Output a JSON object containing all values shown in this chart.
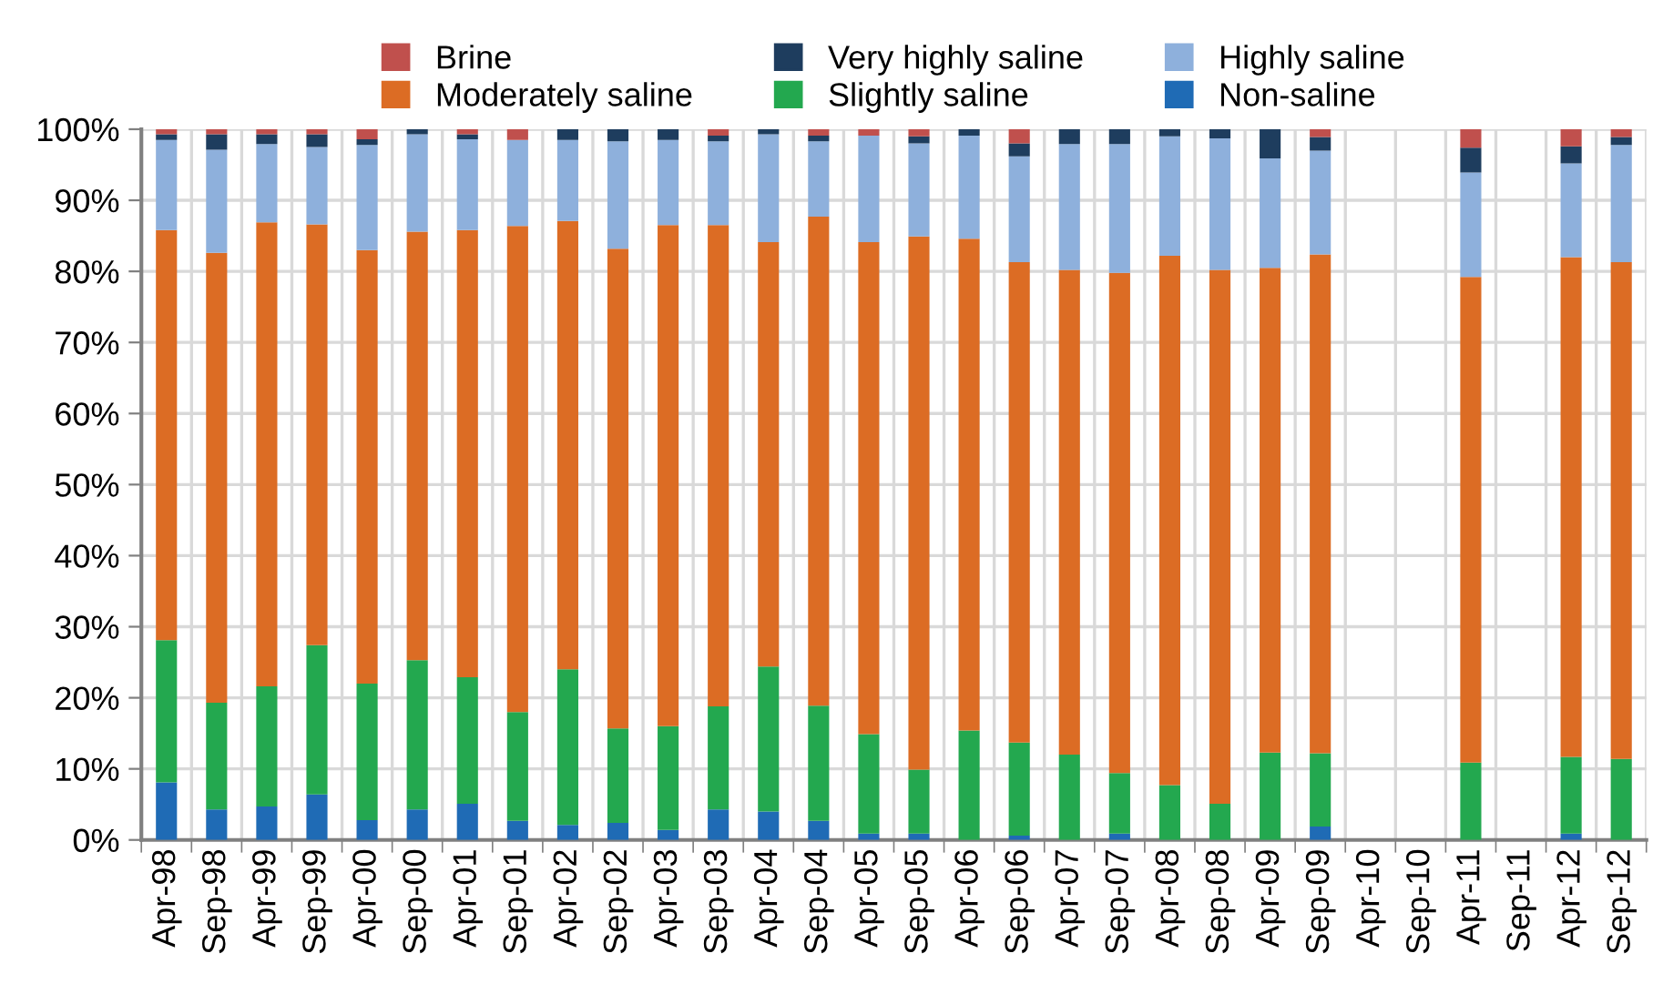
{
  "chart_data": {
    "type": "bar",
    "stacked": true,
    "categories": [
      "Apr-98",
      "Sep-98",
      "Apr-99",
      "Sep-99",
      "Apr-00",
      "Sep-00",
      "Apr-01",
      "Sep-01",
      "Apr-02",
      "Sep-02",
      "Apr-03",
      "Sep-03",
      "Apr-04",
      "Sep-04",
      "Apr-05",
      "Sep-05",
      "Apr-06",
      "Sep-06",
      "Apr-07",
      "Sep-07",
      "Apr-08",
      "Sep-08",
      "Apr-09",
      "Sep-09",
      "Apr-10",
      "Sep-10",
      "Apr-11",
      "Sep-11",
      "Apr-12",
      "Sep-12"
    ],
    "series": [
      {
        "name": "Non-saline",
        "color": "#1f6bb5",
        "values": [
          8.1,
          4.3,
          4.7,
          6.4,
          2.8,
          4.3,
          5.1,
          2.7,
          2.1,
          2.4,
          1.4,
          4.3,
          4.0,
          2.7,
          0.9,
          0.9,
          0,
          0.6,
          0,
          0.9,
          0,
          0,
          0,
          1.9,
          null,
          null,
          0,
          null,
          0.9,
          0
        ]
      },
      {
        "name": "Slightly saline",
        "color": "#23a84f",
        "values": [
          20.0,
          15.0,
          16.9,
          21.0,
          19.2,
          21.0,
          17.8,
          15.3,
          21.9,
          13.3,
          14.6,
          14.5,
          20.4,
          16.2,
          14.0,
          9.0,
          15.4,
          13.1,
          12.0,
          8.5,
          7.7,
          5.1,
          12.3,
          10.3,
          null,
          null,
          10.9,
          null,
          10.8,
          11.4
        ]
      },
      {
        "name": "Moderately saline",
        "color": "#dc6c24",
        "values": [
          57.7,
          63.3,
          65.3,
          59.2,
          61.0,
          60.3,
          62.9,
          68.4,
          63.1,
          67.5,
          70.5,
          67.7,
          59.7,
          68.8,
          69.2,
          75.0,
          69.2,
          67.6,
          68.2,
          70.4,
          74.5,
          75.1,
          68.2,
          70.2,
          null,
          null,
          68.3,
          null,
          70.3,
          69.9
        ]
      },
      {
        "name": "Highly saline",
        "color": "#8eb0dc",
        "values": [
          12.7,
          14.5,
          11.0,
          10.9,
          14.8,
          13.7,
          12.8,
          12.1,
          11.4,
          15.1,
          12.0,
          11.8,
          15.2,
          10.6,
          15.0,
          13.1,
          14.5,
          14.9,
          17.7,
          18.1,
          16.8,
          18.5,
          15.4,
          14.6,
          null,
          null,
          14.7,
          null,
          13.2,
          16.5
        ]
      },
      {
        "name": "Very highly saline",
        "color": "#1e3d5e",
        "values": [
          0.8,
          2.2,
          1.4,
          1.8,
          0.8,
          0.7,
          0.7,
          0,
          1.5,
          1.7,
          1.5,
          0.8,
          0.7,
          0.8,
          0,
          1.0,
          0.9,
          1.8,
          2.1,
          2.1,
          1.0,
          1.3,
          4.1,
          1.9,
          null,
          null,
          3.5,
          null,
          2.4,
          1.1
        ]
      },
      {
        "name": "Brine",
        "color": "#c0504d",
        "values": [
          0.7,
          0.7,
          0.7,
          0.7,
          1.4,
          0,
          0.7,
          1.5,
          0,
          0,
          0,
          0.9,
          0,
          0.9,
          0.9,
          1.0,
          0,
          2.0,
          0,
          0,
          0,
          0,
          0,
          1.1,
          null,
          null,
          2.6,
          null,
          2.4,
          1.1
        ]
      }
    ],
    "ylim": [
      0,
      100
    ],
    "yticks": [
      {
        "value": 0,
        "label": "0%"
      },
      {
        "value": 10,
        "label": "10%"
      },
      {
        "value": 20,
        "label": "20%"
      },
      {
        "value": 30,
        "label": "30%"
      },
      {
        "value": 40,
        "label": "40%"
      },
      {
        "value": 50,
        "label": "50%"
      },
      {
        "value": 60,
        "label": "60%"
      },
      {
        "value": 70,
        "label": "70%"
      },
      {
        "value": 80,
        "label": "80%"
      },
      {
        "value": 90,
        "label": "90%"
      },
      {
        "value": 100,
        "label": "100%"
      }
    ],
    "grid": true,
    "legend": "top"
  }
}
